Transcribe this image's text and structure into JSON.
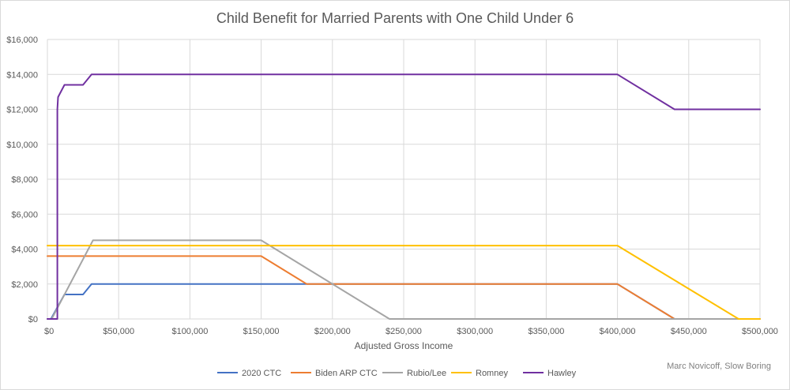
{
  "chart_data": {
    "type": "line",
    "title": "Child Benefit for Married Parents with One Child Under 6",
    "xlabel": "Adjusted Gross Income",
    "ylabel": "",
    "xlim": [
      0,
      500000
    ],
    "ylim": [
      0,
      16000
    ],
    "x_ticks": [
      0,
      50000,
      100000,
      150000,
      200000,
      250000,
      300000,
      350000,
      400000,
      450000,
      500000
    ],
    "x_tick_labels": [
      "$0",
      "$50,000",
      "$100,000",
      "$150,000",
      "$200,000",
      "$250,000",
      "$300,000",
      "$350,000",
      "$400,000",
      "$450,000",
      "$500,000"
    ],
    "y_ticks": [
      0,
      2000,
      4000,
      6000,
      8000,
      10000,
      12000,
      14000,
      16000
    ],
    "y_tick_labels": [
      "$0",
      "$2,000",
      "$4,000",
      "$6,000",
      "$8,000",
      "$10,000",
      "$12,000",
      "$14,000",
      "$16,000"
    ],
    "grid": {
      "vertical": true,
      "horizontal": true
    },
    "legend_position": "bottom",
    "series": [
      {
        "name": "2020 CTC",
        "color": "#4472c4",
        "points": [
          [
            0,
            0
          ],
          [
            2500,
            0
          ],
          [
            12000,
            1400
          ],
          [
            25000,
            1400
          ],
          [
            31000,
            2000
          ],
          [
            180000,
            2000
          ],
          [
            400000,
            2000
          ],
          [
            440000,
            0
          ],
          [
            500000,
            0
          ]
        ]
      },
      {
        "name": "Biden ARP CTC",
        "color": "#ed7d31",
        "points": [
          [
            0,
            3600
          ],
          [
            150000,
            3600
          ],
          [
            182000,
            2000
          ],
          [
            400000,
            2000
          ],
          [
            440000,
            0
          ],
          [
            500000,
            0
          ]
        ]
      },
      {
        "name": "Rubio/Lee",
        "color": "#a5a5a5",
        "points": [
          [
            0,
            0
          ],
          [
            3000,
            0
          ],
          [
            32000,
            4500
          ],
          [
            150000,
            4500
          ],
          [
            240000,
            0
          ],
          [
            500000,
            0
          ]
        ]
      },
      {
        "name": "Romney",
        "color": "#ffc000",
        "points": [
          [
            0,
            4200
          ],
          [
            400000,
            4200
          ],
          [
            485000,
            0
          ],
          [
            500000,
            0
          ]
        ]
      },
      {
        "name": "Hawley",
        "color": "#7030a0",
        "points": [
          [
            0,
            0
          ],
          [
            7000,
            0
          ],
          [
            7000,
            12000
          ],
          [
            7500,
            12700
          ],
          [
            12000,
            13400
          ],
          [
            25000,
            13400
          ],
          [
            31000,
            14000
          ],
          [
            400000,
            14000
          ],
          [
            440000,
            12000
          ],
          [
            500000,
            12000
          ]
        ]
      }
    ],
    "credit": "Marc Novicoff, Slow Boring"
  }
}
